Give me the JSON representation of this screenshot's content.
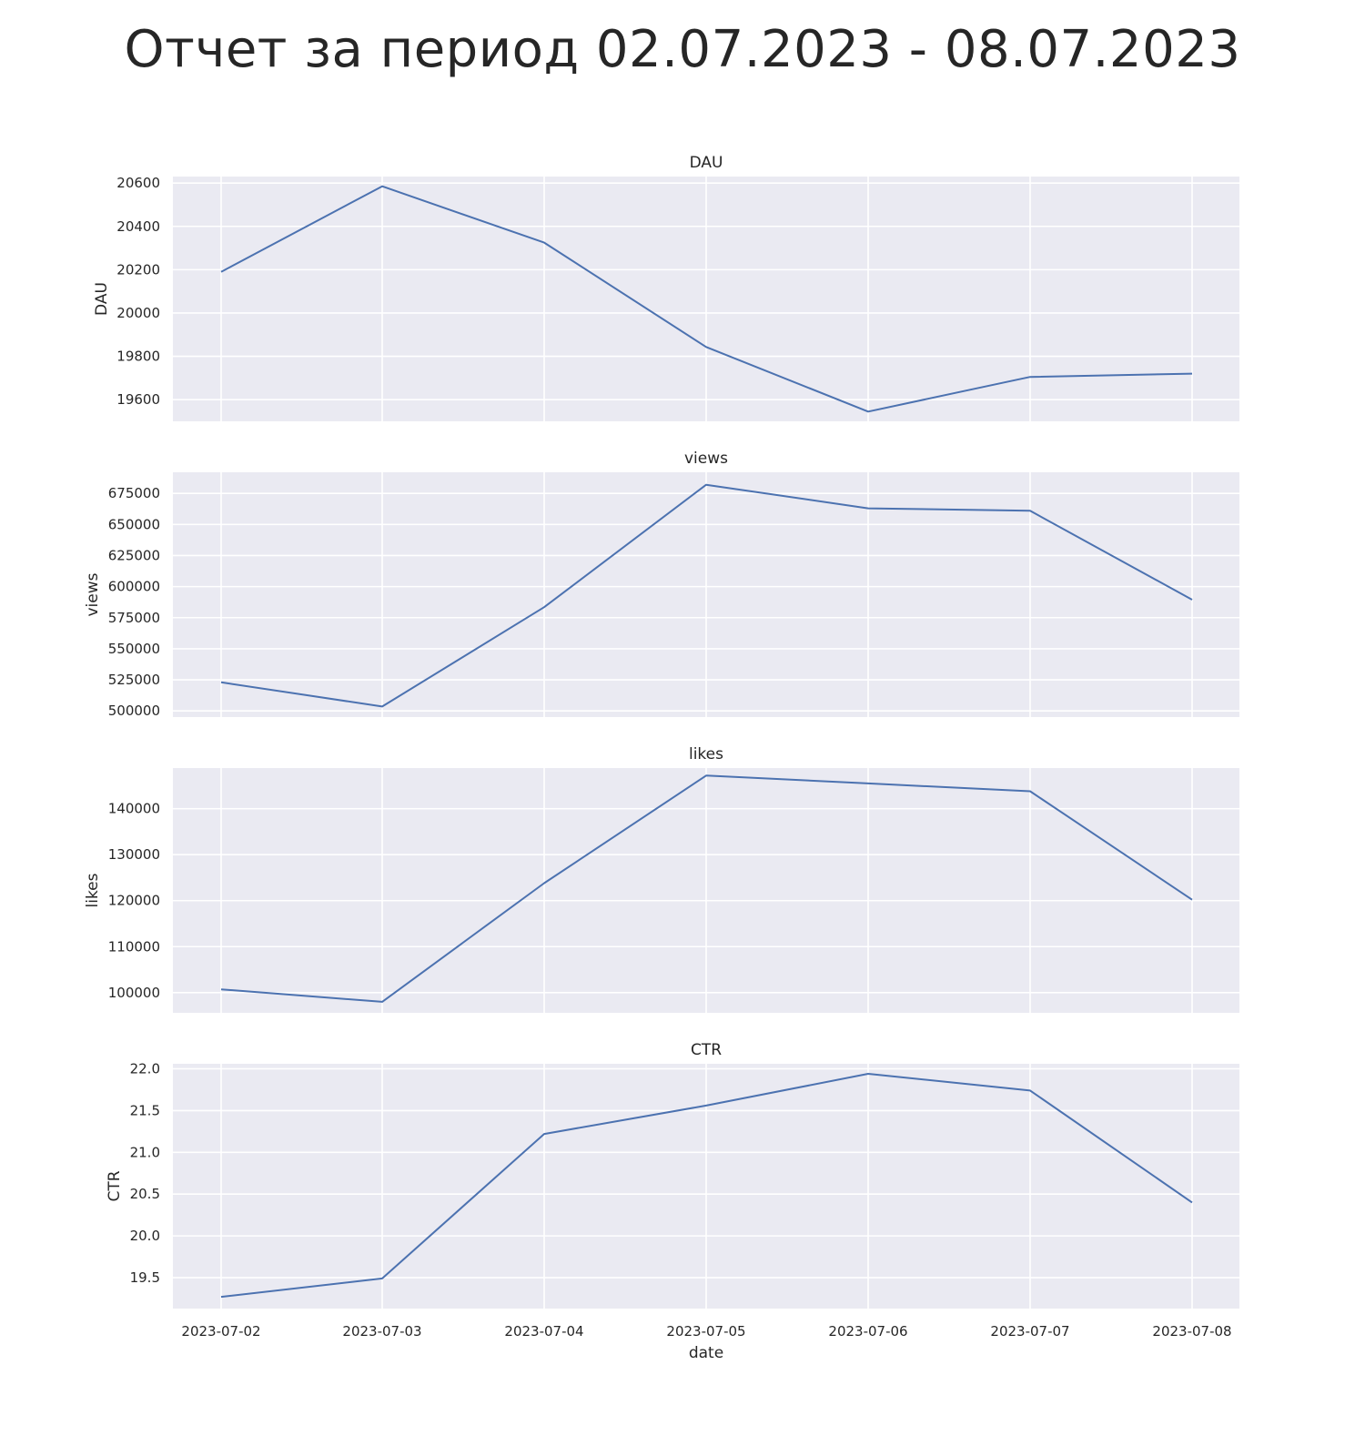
{
  "suptitle": "Отчет за период 02.07.2023 - 08.07.2023",
  "colors": {
    "background": "#eaeaf2",
    "grid": "#ffffff",
    "line": "#4c72b0",
    "text": "#262626"
  },
  "chart_data": [
    {
      "type": "line",
      "title": "DAU",
      "ylabel": "DAU",
      "xlabel": "",
      "x": [
        "2023-07-02",
        "2023-07-03",
        "2023-07-04",
        "2023-07-05",
        "2023-07-06",
        "2023-07-07",
        "2023-07-08"
      ],
      "series": [
        {
          "values": [
            20190,
            20585,
            20325,
            19843,
            19545,
            19705,
            19720
          ]
        }
      ],
      "ylim": [
        19500,
        20630
      ],
      "yticks": [
        19600,
        19800,
        20000,
        20200,
        20400,
        20600
      ],
      "grid": true,
      "show_xticklabels": false
    },
    {
      "type": "line",
      "title": "views",
      "ylabel": "views",
      "xlabel": "",
      "x": [
        "2023-07-02",
        "2023-07-03",
        "2023-07-04",
        "2023-07-05",
        "2023-07-06",
        "2023-07-07",
        "2023-07-08"
      ],
      "series": [
        {
          "values": [
            523000,
            503500,
            583500,
            682000,
            663000,
            661000,
            589500
          ]
        }
      ],
      "ylim": [
        495000,
        692000
      ],
      "yticks": [
        500000,
        525000,
        550000,
        575000,
        600000,
        625000,
        650000,
        675000
      ],
      "grid": true,
      "show_xticklabels": false
    },
    {
      "type": "line",
      "title": "likes",
      "ylabel": "likes",
      "xlabel": "",
      "x": [
        "2023-07-02",
        "2023-07-03",
        "2023-07-04",
        "2023-07-05",
        "2023-07-06",
        "2023-07-07",
        "2023-07-08"
      ],
      "series": [
        {
          "values": [
            100700,
            98000,
            123800,
            147200,
            145500,
            143800,
            120200
          ]
        }
      ],
      "ylim": [
        95600,
        148850
      ],
      "yticks": [
        100000,
        110000,
        120000,
        130000,
        140000
      ],
      "grid": true,
      "show_xticklabels": false
    },
    {
      "type": "line",
      "title": "CTR",
      "ylabel": "CTR",
      "xlabel": "date",
      "x": [
        "2023-07-02",
        "2023-07-03",
        "2023-07-04",
        "2023-07-05",
        "2023-07-06",
        "2023-07-07",
        "2023-07-08"
      ],
      "series": [
        {
          "values": [
            19.27,
            19.49,
            21.22,
            21.56,
            21.94,
            21.74,
            20.4
          ]
        }
      ],
      "ylim": [
        19.13,
        22.06
      ],
      "yticks": [
        19.5,
        20.0,
        20.5,
        21.0,
        21.5,
        22.0
      ],
      "ytick_decimals": 1,
      "grid": true,
      "show_xticklabels": true
    }
  ]
}
